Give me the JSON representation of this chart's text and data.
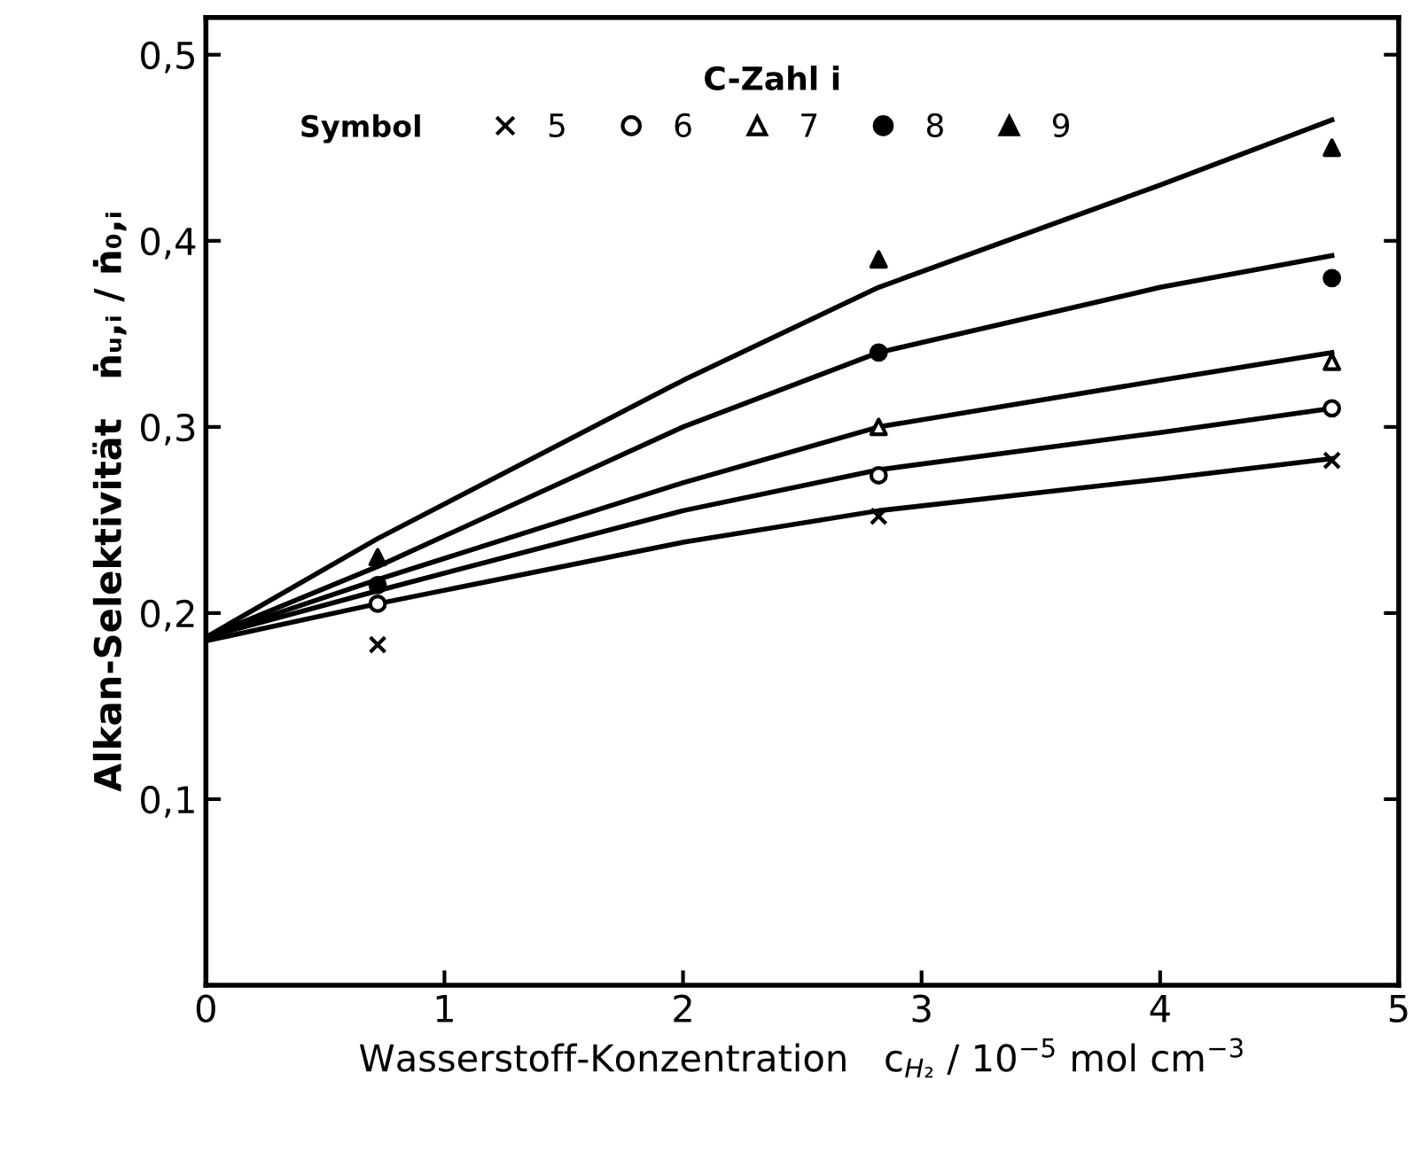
{
  "chart_data": {
    "type": "scatter",
    "xlabel": "Wasserstoff-Konzentration   c$_{H₂}$ / 10$^{−5}$ mol cm$^{−3}$",
    "ylabel": "Alkan-Selektivität   ṅᵤ,ᵢ / ṅ₀,ᵢ",
    "legend_title": "C-Zahl i",
    "annotations": [
      "Symbol"
    ],
    "legend": "top left",
    "grid": false,
    "xlim": [
      0,
      5
    ],
    "ylim": [
      0,
      0.52
    ],
    "xticks": [
      0,
      1,
      2,
      3,
      4,
      5
    ],
    "yticks": [
      {
        "value": 0,
        "label": null
      },
      {
        "value": 0.1,
        "label": "0,1"
      },
      {
        "value": 0.2,
        "label": "0,2"
      },
      {
        "value": 0.3,
        "label": "0,3"
      },
      {
        "value": 0.4,
        "label": "0,4"
      },
      {
        "value": 0.5,
        "label": "0,5"
      }
    ],
    "series": [
      {
        "name": "5",
        "marker": "cross",
        "color": "#000000",
        "x": [
          0.72,
          2.82,
          4.72
        ],
        "values": [
          0.183,
          0.252,
          0.282
        ]
      },
      {
        "name": "6",
        "marker": "circle",
        "color": "#ffffff",
        "x": [
          0.72,
          2.82,
          4.72
        ],
        "values": [
          0.205,
          0.274,
          0.31
        ]
      },
      {
        "name": "7",
        "marker": "triangle",
        "color": "#ffffff",
        "x": [
          2.82,
          4.72
        ],
        "values": [
          0.3,
          0.335
        ]
      },
      {
        "name": "8",
        "marker": "circle",
        "color": "#000000",
        "x": [
          0.72,
          2.82,
          4.72
        ],
        "values": [
          0.215,
          0.34,
          0.38
        ]
      },
      {
        "name": "9",
        "marker": "triangle",
        "color": "#000000",
        "x": [
          0.72,
          2.82,
          4.72
        ],
        "values": [
          0.23,
          0.39,
          0.45
        ]
      },
      {
        "type": "line",
        "color": "#000000",
        "x": [
          0,
          0.72,
          2,
          2.82,
          4,
          4.72
        ],
        "values": [
          0.185,
          0.205,
          0.238,
          0.255,
          0.272,
          0.283
        ]
      },
      {
        "type": "line",
        "color": "#000000",
        "x": [
          0,
          0.72,
          2,
          2.82,
          4,
          4.72
        ],
        "values": [
          0.187,
          0.212,
          0.255,
          0.277,
          0.297,
          0.31
        ]
      },
      {
        "type": "line",
        "color": "#000000",
        "x": [
          0,
          0.72,
          2,
          2.82,
          4,
          4.72
        ],
        "values": [
          0.187,
          0.218,
          0.27,
          0.3,
          0.325,
          0.34
        ]
      },
      {
        "type": "line",
        "color": "#000000",
        "x": [
          0,
          0.72,
          2,
          2.82,
          4,
          4.72
        ],
        "values": [
          0.187,
          0.225,
          0.3,
          0.34,
          0.375,
          0.392
        ]
      },
      {
        "type": "line",
        "color": "#000000",
        "x": [
          0,
          0.72,
          2,
          2.82,
          4,
          4.72
        ],
        "values": [
          0.187,
          0.24,
          0.325,
          0.375,
          0.43,
          0.465
        ]
      }
    ]
  }
}
